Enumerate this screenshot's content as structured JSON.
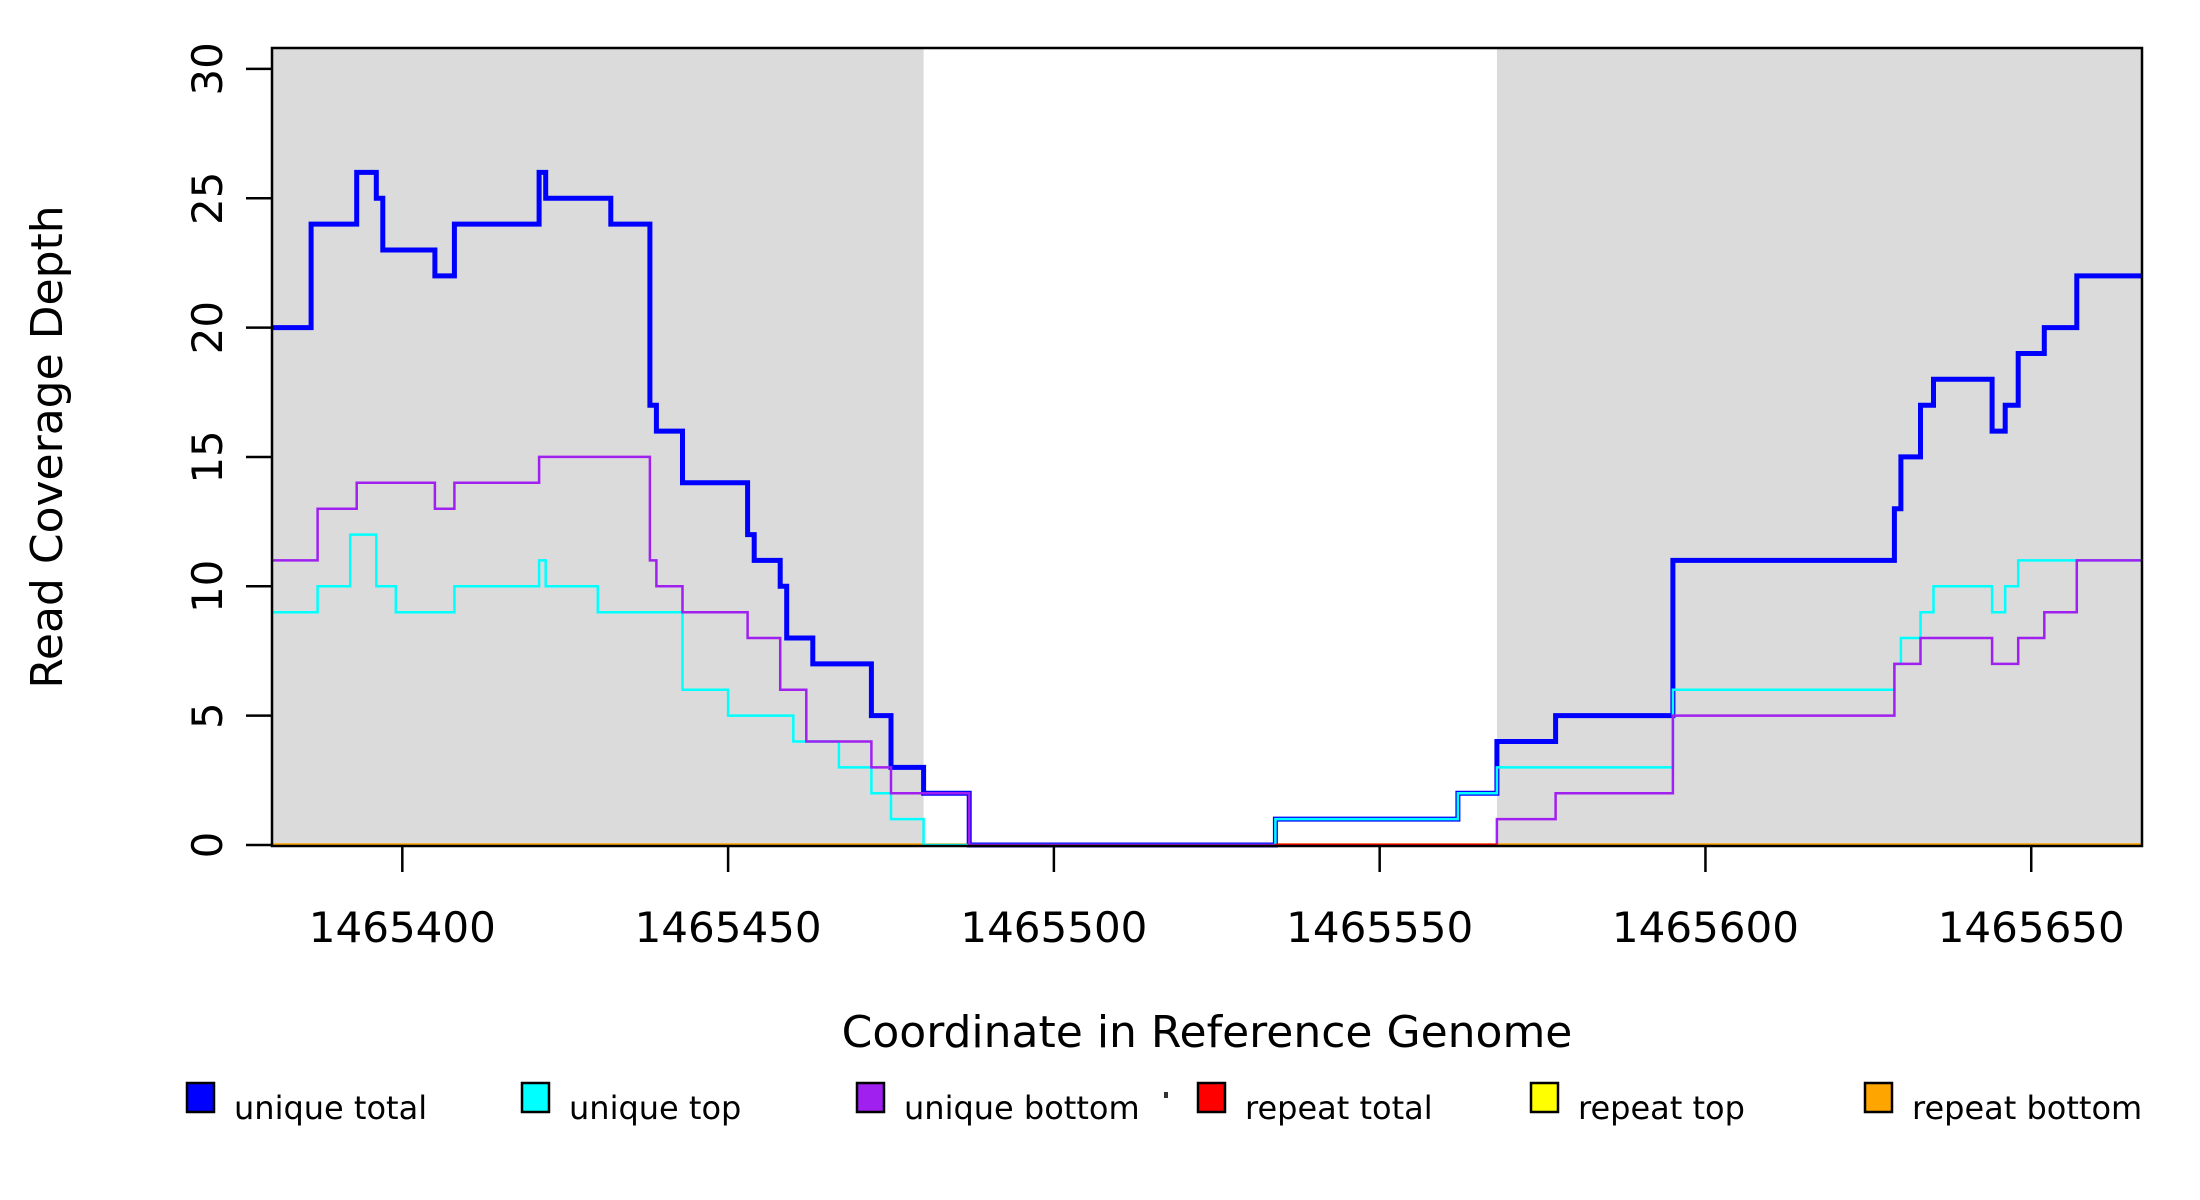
{
  "chart_data": {
    "type": "line",
    "subtype": "step-after",
    "title": "",
    "xlabel": "Coordinate in Reference Genome",
    "ylabel": "Read Coverage Depth",
    "xlim": [
      1465380,
      1465667
    ],
    "ylim": [
      0,
      30.8
    ],
    "x_ticks": [
      1465400,
      1465450,
      1465500,
      1465550,
      1465600,
      1465650
    ],
    "y_ticks": [
      0,
      5,
      10,
      15,
      20,
      25,
      30
    ],
    "grid": "off",
    "legend_position": "bottom",
    "shaded_regions": {
      "color": "#DBDBDB",
      "spans": [
        [
          1465380,
          1465480
        ],
        [
          1465568,
          1465667
        ]
      ]
    },
    "series": [
      {
        "name": "unique total",
        "color": "#0000FF",
        "width": 5,
        "points": [
          [
            1465380,
            20
          ],
          [
            1465386,
            24
          ],
          [
            1465393,
            26
          ],
          [
            1465396,
            25
          ],
          [
            1465397,
            23
          ],
          [
            1465405,
            22
          ],
          [
            1465408,
            24
          ],
          [
            1465421,
            26
          ],
          [
            1465422,
            25
          ],
          [
            1465432,
            24
          ],
          [
            1465438,
            17
          ],
          [
            1465439,
            16
          ],
          [
            1465443,
            14
          ],
          [
            1465453,
            12
          ],
          [
            1465454,
            11
          ],
          [
            1465458,
            10
          ],
          [
            1465459,
            8
          ],
          [
            1465463,
            7
          ],
          [
            1465472,
            5
          ],
          [
            1465475,
            3
          ],
          [
            1465480,
            2
          ],
          [
            1465487,
            0
          ],
          [
            1465534,
            1
          ],
          [
            1465562,
            2
          ],
          [
            1465568,
            4
          ],
          [
            1465577,
            5
          ],
          [
            1465595,
            11
          ],
          [
            1465629,
            13
          ],
          [
            1465630,
            15
          ],
          [
            1465633,
            17
          ],
          [
            1465635,
            18
          ],
          [
            1465644,
            16
          ],
          [
            1465646,
            17
          ],
          [
            1465648,
            19
          ],
          [
            1465652,
            20
          ],
          [
            1465657,
            22
          ],
          [
            1465667,
            22
          ]
        ]
      },
      {
        "name": "unique top",
        "color": "#00FFFF",
        "width": 2.5,
        "points": [
          [
            1465380,
            9
          ],
          [
            1465387,
            10
          ],
          [
            1465392,
            12
          ],
          [
            1465396,
            10
          ],
          [
            1465399,
            9
          ],
          [
            1465408,
            10
          ],
          [
            1465421,
            11
          ],
          [
            1465422,
            10
          ],
          [
            1465430,
            9
          ],
          [
            1465443,
            6
          ],
          [
            1465450,
            5
          ],
          [
            1465460,
            4
          ],
          [
            1465467,
            3
          ],
          [
            1465472,
            2
          ],
          [
            1465475,
            1
          ],
          [
            1465480,
            0
          ],
          [
            1465534,
            1
          ],
          [
            1465562,
            2
          ],
          [
            1465568,
            3
          ],
          [
            1465595,
            6
          ],
          [
            1465629,
            7
          ],
          [
            1465630,
            8
          ],
          [
            1465633,
            9
          ],
          [
            1465635,
            10
          ],
          [
            1465644,
            9
          ],
          [
            1465646,
            10
          ],
          [
            1465648,
            11
          ],
          [
            1465667,
            11
          ]
        ]
      },
      {
        "name": "unique bottom",
        "color": "#A020F0",
        "width": 2.5,
        "points": [
          [
            1465380,
            11
          ],
          [
            1465387,
            13
          ],
          [
            1465393,
            14
          ],
          [
            1465405,
            13
          ],
          [
            1465408,
            14
          ],
          [
            1465421,
            15
          ],
          [
            1465438,
            11
          ],
          [
            1465439,
            10
          ],
          [
            1465443,
            9
          ],
          [
            1465453,
            8
          ],
          [
            1465458,
            6
          ],
          [
            1465462,
            4
          ],
          [
            1465472,
            3
          ],
          [
            1465475,
            2
          ],
          [
            1465487,
            0
          ],
          [
            1465568,
            1
          ],
          [
            1465577,
            2
          ],
          [
            1465595,
            5
          ],
          [
            1465629,
            7
          ],
          [
            1465633,
            8
          ],
          [
            1465644,
            7
          ],
          [
            1465648,
            8
          ],
          [
            1465652,
            9
          ],
          [
            1465657,
            11
          ],
          [
            1465667,
            11
          ]
        ]
      },
      {
        "name": "repeat total",
        "color": "#FF0000",
        "width": 3,
        "points": [
          [
            1465534,
            0
          ],
          [
            1465568,
            0
          ]
        ]
      },
      {
        "name": "repeat top",
        "color": "#FFFF00",
        "width": 2.5,
        "points": [
          [
            1465380,
            0
          ],
          [
            1465667,
            0
          ]
        ]
      },
      {
        "name": "repeat bottom",
        "color": "#FFA500",
        "width": 3.5,
        "points": [
          [
            1465380,
            0
          ],
          [
            1465667,
            0
          ]
        ]
      }
    ],
    "draw_order": [
      "repeat top",
      "repeat bottom",
      "unique total",
      "unique top",
      "unique bottom",
      "repeat total"
    ]
  },
  "legend": {
    "entries": [
      {
        "label": "unique total",
        "color": "#0000FF"
      },
      {
        "label": "unique top",
        "color": "#00FFFF"
      },
      {
        "label": "unique bottom",
        "color": "#A020F0"
      },
      {
        "label": "repeat total",
        "color": "#FF0000"
      },
      {
        "label": "repeat top",
        "color": "#FFFF00"
      },
      {
        "label": "repeat bottom",
        "color": "#FFA500"
      }
    ]
  },
  "axes": {
    "x_title": "Coordinate in Reference Genome",
    "y_title": "Read Coverage Depth"
  }
}
